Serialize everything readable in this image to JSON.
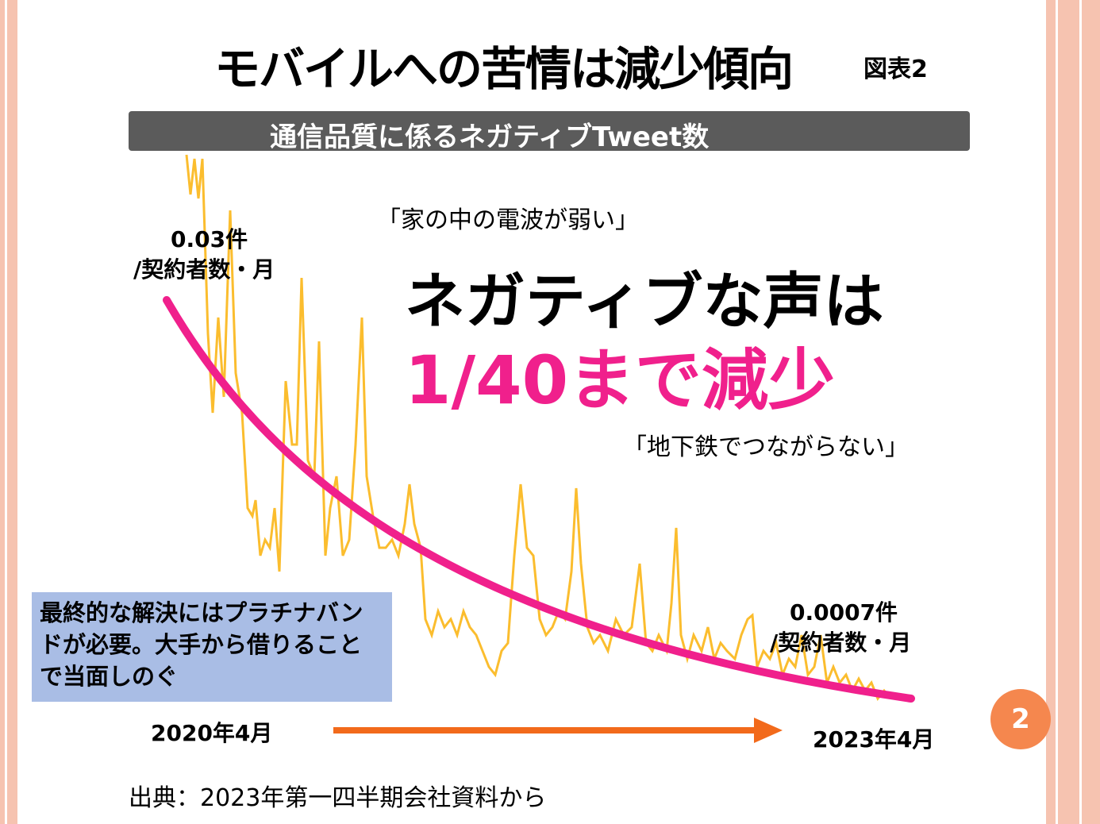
{
  "slide": {
    "title": "モバイルへの苦情は減少傾向",
    "figure_label": "図表2",
    "banner": "通信品質に係るネガティブTweet数",
    "start_value": "0.03件",
    "start_unit": "/契約者数・月",
    "quote_1": "「家の中の電波が弱い」",
    "headline_1": "ネガティブな声は",
    "headline_2": "1/40まで減少",
    "quote_2": "「地下鉄でつながらない」",
    "end_value": "0.0007件",
    "end_unit": "/契約者数・月",
    "note": "最終的な解決にはプラチナバンドが必要。大手から借りることで当面しのぐ",
    "start_date": "2020年4月",
    "end_date": "2023年4月",
    "page_number": "2",
    "source": "出典：2023年第一四半期会社資料から"
  }
}
